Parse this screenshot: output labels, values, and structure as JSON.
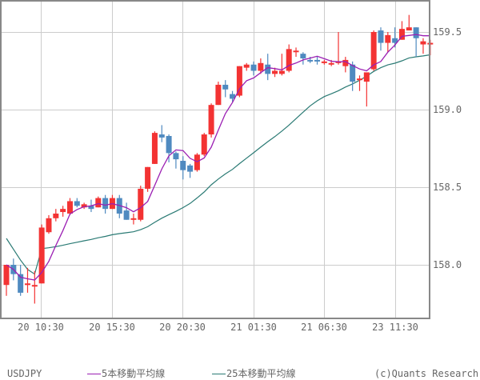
{
  "chart_data": {
    "type": "candlestick",
    "symbol": "USDJPY",
    "title": "",
    "xlabel": "",
    "ylabel": "",
    "ylim": [
      157.65,
      159.68
    ],
    "y_ticks": [
      "158.0",
      "158.5",
      "159.0",
      "159.5"
    ],
    "x_ticks": [
      "20 10:30",
      "20 15:30",
      "20 20:30",
      "21 01:30",
      "21 06:30",
      "23 11:30"
    ],
    "grid": true,
    "colors": {
      "up": "#f33333",
      "down": "#4f8ac0",
      "ma5": "#9b1fb3",
      "ma25": "#2a7a74",
      "grid": "#cccccc",
      "frame": "#888888"
    },
    "legend": [
      "5本移動平均線",
      "25本移動平均線"
    ],
    "candles": [
      {
        "o": 157.87,
        "h": 158.0,
        "l": 157.8,
        "c": 158.0
      },
      {
        "o": 158.0,
        "h": 158.04,
        "l": 157.9,
        "c": 157.94
      },
      {
        "o": 157.94,
        "h": 158.0,
        "l": 157.8,
        "c": 157.82
      },
      {
        "o": 157.87,
        "h": 157.98,
        "l": 157.82,
        "c": 157.88
      },
      {
        "o": 157.86,
        "h": 157.96,
        "l": 157.75,
        "c": 157.87
      },
      {
        "o": 157.88,
        "h": 158.26,
        "l": 157.88,
        "c": 158.24
      },
      {
        "o": 158.21,
        "h": 158.32,
        "l": 158.2,
        "c": 158.3
      },
      {
        "o": 158.3,
        "h": 158.36,
        "l": 158.28,
        "c": 158.33
      },
      {
        "o": 158.34,
        "h": 158.38,
        "l": 158.31,
        "c": 158.36
      },
      {
        "o": 158.33,
        "h": 158.43,
        "l": 158.32,
        "c": 158.41
      },
      {
        "o": 158.41,
        "h": 158.43,
        "l": 158.37,
        "c": 158.38
      },
      {
        "o": 158.37,
        "h": 158.4,
        "l": 158.36,
        "c": 158.39
      },
      {
        "o": 158.38,
        "h": 158.42,
        "l": 158.34,
        "c": 158.36
      },
      {
        "o": 158.37,
        "h": 158.44,
        "l": 158.37,
        "c": 158.43
      },
      {
        "o": 158.43,
        "h": 158.45,
        "l": 158.33,
        "c": 158.36
      },
      {
        "o": 158.36,
        "h": 158.45,
        "l": 158.36,
        "c": 158.43
      },
      {
        "o": 158.43,
        "h": 158.45,
        "l": 158.3,
        "c": 158.33
      },
      {
        "o": 158.35,
        "h": 158.4,
        "l": 158.29,
        "c": 158.29
      },
      {
        "o": 158.3,
        "h": 158.33,
        "l": 158.26,
        "c": 158.3
      },
      {
        "o": 158.29,
        "h": 158.51,
        "l": 158.28,
        "c": 158.49
      },
      {
        "o": 158.49,
        "h": 158.63,
        "l": 158.47,
        "c": 158.63
      },
      {
        "o": 158.65,
        "h": 158.86,
        "l": 158.65,
        "c": 158.85
      },
      {
        "o": 158.84,
        "h": 158.9,
        "l": 158.79,
        "c": 158.82
      },
      {
        "o": 158.83,
        "h": 158.84,
        "l": 158.66,
        "c": 158.72
      },
      {
        "o": 158.72,
        "h": 158.73,
        "l": 158.62,
        "c": 158.68
      },
      {
        "o": 158.67,
        "h": 158.7,
        "l": 158.55,
        "c": 158.61
      },
      {
        "o": 158.64,
        "h": 158.65,
        "l": 158.56,
        "c": 158.6
      },
      {
        "o": 158.61,
        "h": 158.72,
        "l": 158.6,
        "c": 158.71
      },
      {
        "o": 158.71,
        "h": 158.85,
        "l": 158.7,
        "c": 158.84
      },
      {
        "o": 158.84,
        "h": 159.04,
        "l": 158.82,
        "c": 159.03
      },
      {
        "o": 159.03,
        "h": 159.18,
        "l": 159.03,
        "c": 159.16
      },
      {
        "o": 159.16,
        "h": 159.19,
        "l": 159.08,
        "c": 159.13
      },
      {
        "o": 159.1,
        "h": 159.12,
        "l": 159.05,
        "c": 159.07
      },
      {
        "o": 159.09,
        "h": 159.28,
        "l": 159.08,
        "c": 159.28
      },
      {
        "o": 159.27,
        "h": 159.3,
        "l": 159.25,
        "c": 159.29
      },
      {
        "o": 159.29,
        "h": 159.31,
        "l": 159.22,
        "c": 159.25
      },
      {
        "o": 159.25,
        "h": 159.33,
        "l": 159.23,
        "c": 159.3
      },
      {
        "o": 159.29,
        "h": 159.36,
        "l": 159.19,
        "c": 159.23
      },
      {
        "o": 159.23,
        "h": 159.27,
        "l": 159.21,
        "c": 159.25
      },
      {
        "o": 159.23,
        "h": 159.36,
        "l": 159.22,
        "c": 159.25
      },
      {
        "o": 159.25,
        "h": 159.42,
        "l": 159.24,
        "c": 159.39
      },
      {
        "o": 159.38,
        "h": 159.4,
        "l": 159.34,
        "c": 159.38
      },
      {
        "o": 159.36,
        "h": 159.37,
        "l": 159.29,
        "c": 159.33
      },
      {
        "o": 159.32,
        "h": 159.34,
        "l": 159.3,
        "c": 159.31
      },
      {
        "o": 159.32,
        "h": 159.34,
        "l": 159.29,
        "c": 159.31
      },
      {
        "o": 159.3,
        "h": 159.32,
        "l": 159.29,
        "c": 159.31
      },
      {
        "o": 159.3,
        "h": 159.32,
        "l": 159.28,
        "c": 159.3
      },
      {
        "o": 159.3,
        "h": 159.5,
        "l": 159.29,
        "c": 159.31
      },
      {
        "o": 159.28,
        "h": 159.34,
        "l": 159.24,
        "c": 159.32
      },
      {
        "o": 159.29,
        "h": 159.31,
        "l": 159.12,
        "c": 159.18
      },
      {
        "o": 159.19,
        "h": 159.22,
        "l": 159.12,
        "c": 159.2
      },
      {
        "o": 159.18,
        "h": 159.2,
        "l": 159.02,
        "c": 159.24
      },
      {
        "o": 159.26,
        "h": 159.51,
        "l": 159.25,
        "c": 159.5
      },
      {
        "o": 159.51,
        "h": 159.53,
        "l": 159.38,
        "c": 159.43
      },
      {
        "o": 159.43,
        "h": 159.5,
        "l": 159.37,
        "c": 159.48
      },
      {
        "o": 159.46,
        "h": 159.53,
        "l": 159.4,
        "c": 159.43
      },
      {
        "o": 159.45,
        "h": 159.57,
        "l": 159.45,
        "c": 159.52
      },
      {
        "o": 159.51,
        "h": 159.61,
        "l": 159.51,
        "c": 159.53
      },
      {
        "o": 159.53,
        "h": 159.53,
        "l": 159.34,
        "c": 159.46
      },
      {
        "o": 159.42,
        "h": 159.46,
        "l": 159.36,
        "c": 159.44
      },
      {
        "o": 159.42,
        "h": 159.45,
        "l": 159.35,
        "c": 159.43
      }
    ],
    "ma25_start": [
      158.17,
      158.1,
      158.03,
      157.97,
      157.94
    ]
  },
  "footer": {
    "symbol": "USDJPY",
    "legend_ma5": "5本移動平均線",
    "legend_ma25": "25本移動平均線",
    "copyright": "(c)Quants Research"
  }
}
